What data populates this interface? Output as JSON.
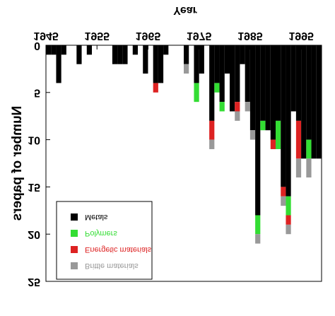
{
  "chart_data": {
    "type": "stacked_bar",
    "x_label": "Year",
    "y_label": "Number of papers",
    "x": [
      1945,
      1946,
      1947,
      1948,
      1949,
      1950,
      1951,
      1952,
      1953,
      1954,
      1955,
      1956,
      1957,
      1958,
      1959,
      1960,
      1961,
      1962,
      1963,
      1964,
      1965,
      1966,
      1967,
      1968,
      1969,
      1970,
      1971,
      1972,
      1973,
      1974,
      1975,
      1976,
      1977,
      1978,
      1979,
      1980,
      1981,
      1982,
      1983,
      1984,
      1985,
      1986,
      1987,
      1988,
      1989,
      1990,
      1991,
      1992,
      1993,
      1994,
      1995,
      1996,
      1997,
      1998
    ],
    "series": [
      {
        "name": "Metals",
        "color": "#000000",
        "values": [
          1,
          1,
          4,
          1,
          0,
          0,
          2,
          0,
          1,
          0,
          0,
          0,
          0,
          2,
          2,
          2,
          0,
          1,
          0,
          3,
          0,
          4,
          4,
          1,
          0,
          0,
          0,
          2,
          0,
          4,
          3,
          0,
          8,
          4,
          6,
          3,
          7,
          6,
          2,
          6,
          9,
          18,
          8,
          9,
          10,
          8,
          15,
          16,
          7,
          8,
          12,
          10,
          12,
          12
        ]
      },
      {
        "name": "Polymers",
        "color": "#33dd33",
        "values": [
          0,
          0,
          0,
          0,
          0,
          0,
          0,
          0,
          0,
          0,
          0,
          0,
          0,
          0,
          0,
          0,
          0,
          0,
          0,
          0,
          0,
          0,
          0,
          0,
          0,
          0,
          0,
          0,
          0,
          2,
          0,
          0,
          0,
          1,
          1,
          0,
          0,
          0,
          0,
          0,
          0,
          2,
          1,
          0,
          0,
          3,
          0,
          2,
          0,
          0,
          0,
          2,
          0,
          0
        ]
      },
      {
        "name": "Energetic materials",
        "color": "#dd2222",
        "values": [
          0,
          0,
          0,
          0,
          0,
          0,
          0,
          0,
          0,
          0,
          0,
          0,
          0,
          0,
          0,
          0,
          0,
          0,
          0,
          0,
          0,
          1,
          0,
          0,
          0,
          0,
          0,
          0,
          0,
          0,
          0,
          0,
          2,
          0,
          0,
          0,
          0,
          1,
          0,
          0,
          0,
          0,
          0,
          0,
          1,
          0,
          1,
          1,
          0,
          4,
          0,
          0,
          0,
          0
        ]
      },
      {
        "name": "Brittle materials",
        "color": "#999999",
        "values": [
          0,
          0,
          0,
          0,
          0,
          0,
          0,
          0,
          0,
          0,
          0,
          0,
          0,
          0,
          0,
          0,
          0,
          0,
          0,
          0,
          0,
          0,
          0,
          0,
          0,
          0,
          0,
          1,
          0,
          0,
          0,
          0,
          1,
          0,
          0,
          0,
          0,
          1,
          0,
          1,
          1,
          1,
          0,
          0,
          0,
          0,
          1,
          1,
          0,
          2,
          0,
          2,
          0,
          0
        ]
      }
    ],
    "xlim": [
      1945,
      1999
    ],
    "xticks": [
      1945,
      1955,
      1965,
      1975,
      1985,
      1995
    ],
    "ylim": [
      0,
      25
    ],
    "yticks": [
      0,
      5,
      10,
      15,
      20,
      25
    ],
    "legend": "lower left",
    "flipped_vertically": true
  }
}
